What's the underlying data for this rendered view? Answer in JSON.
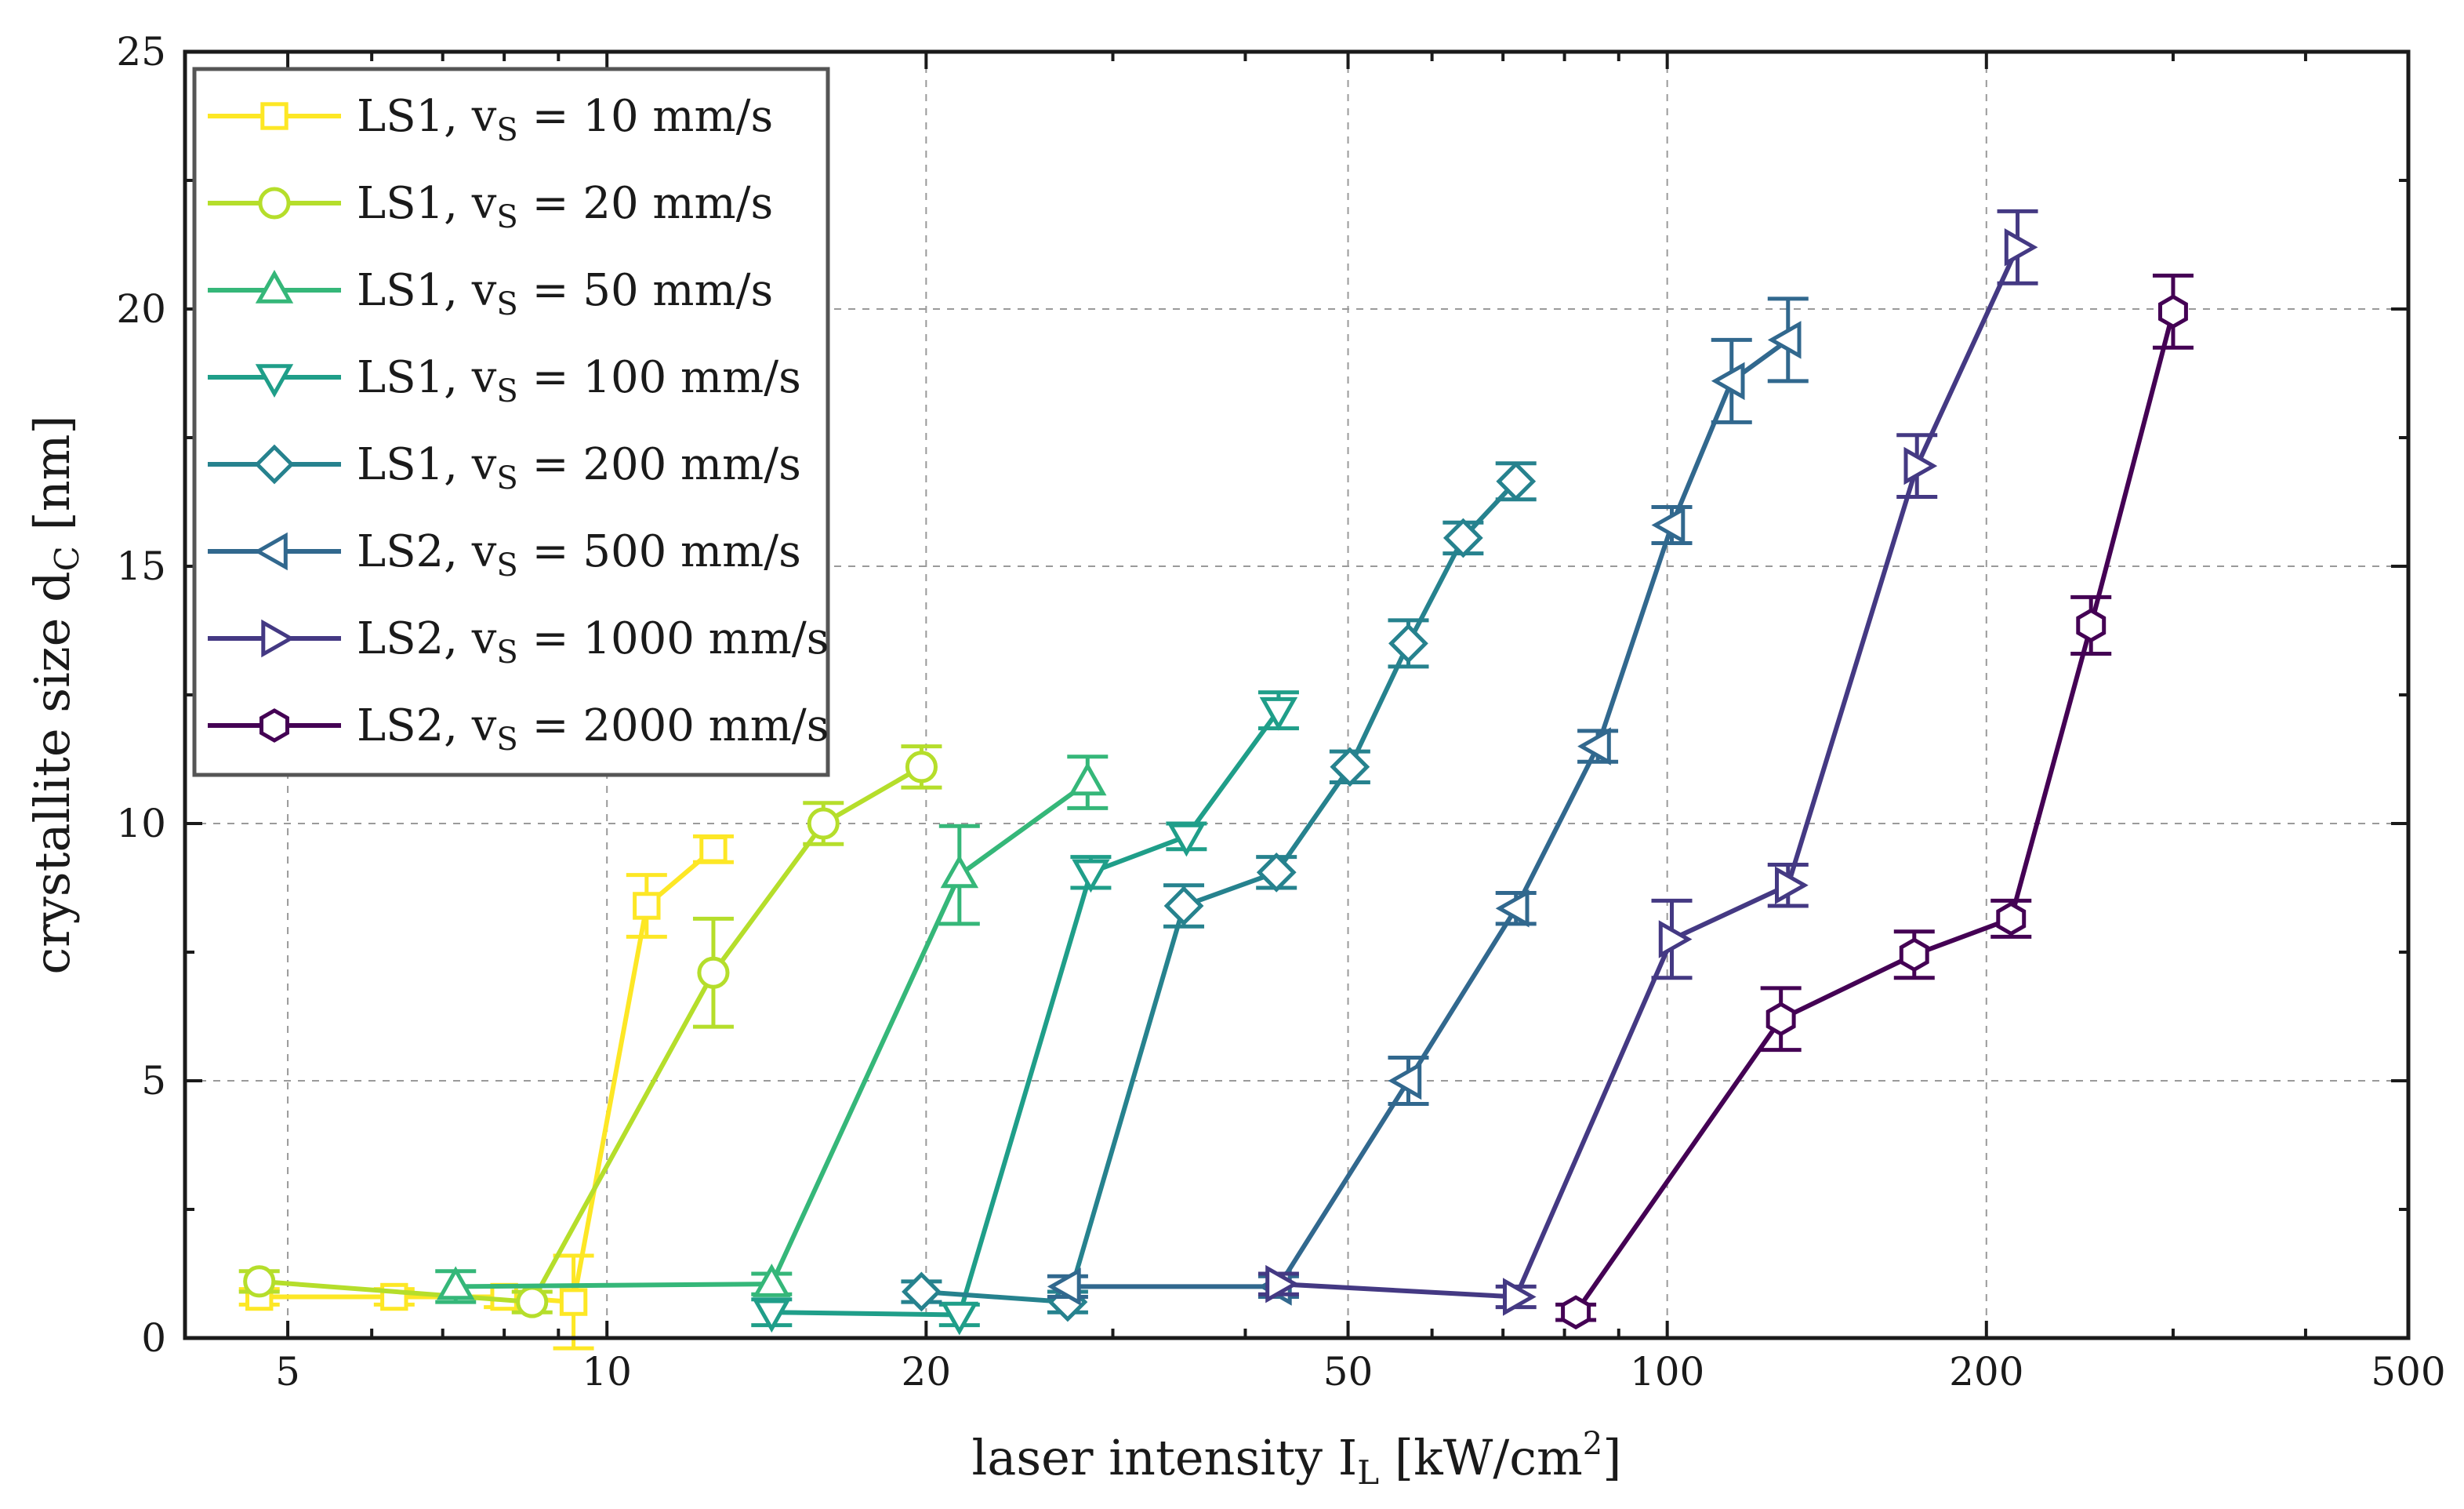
{
  "chart_data": {
    "type": "line",
    "title": "",
    "xlabel": "laser intensity I",
    "xlabel_sub": "L",
    "xlabel_unit": " [kW/cm",
    "xlabel_sup": "2",
    "xlabel_close": "]",
    "ylabel": "crystallite size d",
    "ylabel_sub": "C",
    "ylabel_unit": " [nm]",
    "xscale": "log",
    "xlim": [
      4,
      500
    ],
    "ylim": [
      0,
      25
    ],
    "xticks": [
      5,
      10,
      20,
      50,
      100,
      200,
      500
    ],
    "xtick_labels": [
      "5",
      "10",
      "20",
      "50",
      "100",
      "200",
      "500"
    ],
    "yticks": [
      0,
      5,
      10,
      15,
      20,
      25
    ],
    "ytick_labels": [
      "0",
      "5",
      "10",
      "15",
      "20",
      "25"
    ],
    "grid": true,
    "legend_position": "top-left",
    "series": [
      {
        "name": "LS1, v",
        "sub": "S",
        "rest": " = 10 mm/s",
        "marker": "square",
        "color": "#fde725",
        "x": [
          4.7,
          6.3,
          8.0,
          9.3,
          10.9,
          12.6
        ],
        "y": [
          0.8,
          0.8,
          0.8,
          0.7,
          8.4,
          9.5
        ],
        "err": [
          0.15,
          0.15,
          0.2,
          0.9,
          0.6,
          0.25
        ]
      },
      {
        "name": "LS1, v",
        "sub": "S",
        "rest": " = 20 mm/s",
        "marker": "circle",
        "color": "#b5de2b",
        "x": [
          4.7,
          8.5,
          12.6,
          16.0,
          19.8
        ],
        "y": [
          1.1,
          0.7,
          7.1,
          10.0,
          11.1
        ],
        "err": [
          0.2,
          0.2,
          1.05,
          0.4,
          0.4
        ]
      },
      {
        "name": "LS1, v",
        "sub": "S",
        "rest": " = 50 mm/s",
        "marker": "triangle-up",
        "color": "#35b779",
        "x": [
          7.2,
          14.3,
          21.5,
          28.4
        ],
        "y": [
          1.0,
          1.05,
          9.0,
          10.8
        ],
        "err": [
          0.3,
          0.2,
          0.95,
          0.5
        ]
      },
      {
        "name": "LS1, v",
        "sub": "S",
        "rest": " = 100 mm/s",
        "marker": "triangle-down",
        "color": "#1f9e89",
        "x": [
          14.3,
          21.5,
          28.6,
          35.2,
          43.0
        ],
        "y": [
          0.5,
          0.45,
          9.05,
          9.75,
          12.2
        ],
        "err": [
          0.25,
          0.2,
          0.3,
          0.25,
          0.35
        ]
      },
      {
        "name": "LS1, v",
        "sub": "S",
        "rest": " = 200 mm/s",
        "marker": "diamond",
        "color": "#26828e",
        "x": [
          19.8,
          27.2,
          35.0,
          42.8,
          50.2,
          57.0,
          64.2,
          72.0
        ],
        "y": [
          0.9,
          0.7,
          8.4,
          9.05,
          11.1,
          13.5,
          15.55,
          16.65
        ],
        "err": [
          0.2,
          0.2,
          0.4,
          0.3,
          0.3,
          0.45,
          0.3,
          0.35
        ]
      },
      {
        "name": "LS2, v",
        "sub": "S",
        "rest": " = 500 mm/s",
        "marker": "triangle-left",
        "color": "#31688e",
        "x": [
          27.2,
          43.0,
          57.0,
          72.0,
          86.0,
          101.0,
          115.0,
          130.0
        ],
        "y": [
          1.0,
          1.0,
          5.0,
          8.35,
          11.5,
          15.8,
          18.6,
          19.4
        ],
        "err": [
          0.2,
          0.2,
          0.45,
          0.3,
          0.3,
          0.35,
          0.8,
          0.8
        ]
      },
      {
        "name": "LS2, v",
        "sub": "S",
        "rest": " = 1000 mm/s",
        "marker": "triangle-right",
        "color": "#443983",
        "x": [
          43.0,
          72.0,
          101.0,
          130.0,
          172.0,
          214.0
        ],
        "y": [
          1.05,
          0.8,
          7.75,
          8.8,
          16.95,
          21.2
        ],
        "err": [
          0.2,
          0.2,
          0.75,
          0.4,
          0.6,
          0.7
        ]
      },
      {
        "name": "LS2, v",
        "sub": "S",
        "rest": " = 2000 mm/s",
        "marker": "hexagon",
        "color": "#440154",
        "x": [
          82.0,
          128.0,
          171.0,
          211.0,
          251.0,
          300.0
        ],
        "y": [
          0.5,
          6.2,
          7.45,
          8.15,
          13.85,
          19.95
        ],
        "err": [
          0.15,
          0.6,
          0.45,
          0.35,
          0.55,
          0.7
        ]
      }
    ]
  }
}
